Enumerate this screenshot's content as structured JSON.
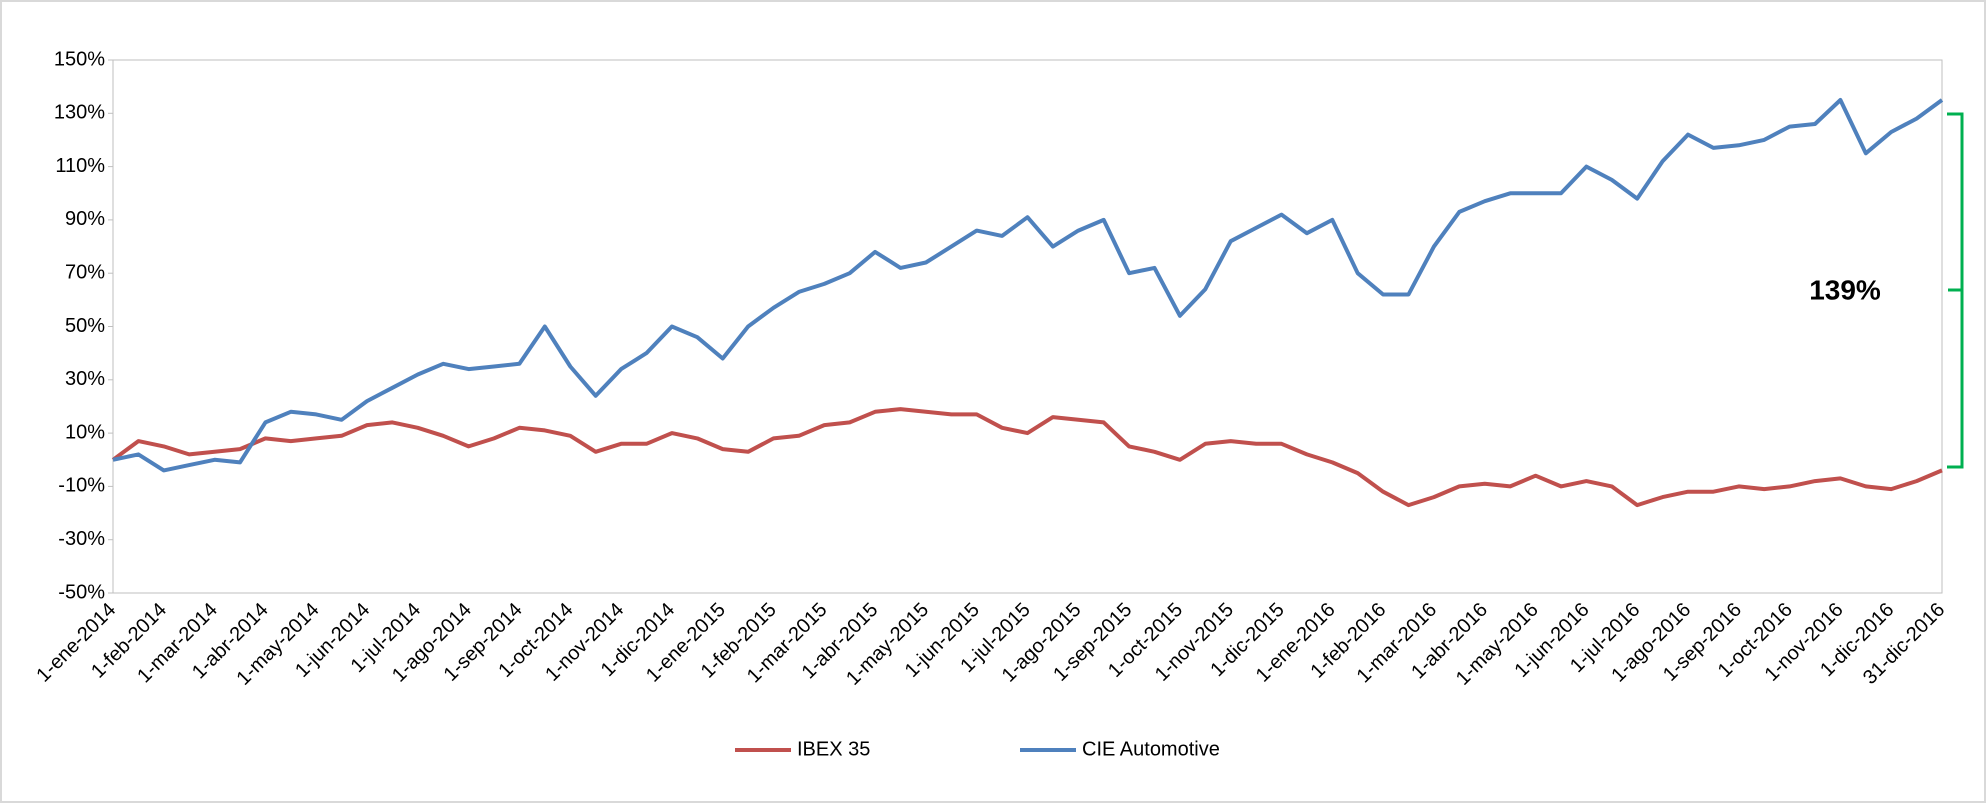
{
  "chart_data": {
    "type": "line",
    "categories": [
      "1-ene-2014",
      null,
      "1-feb-2014",
      null,
      "1-mar-2014",
      null,
      "1-abr-2014",
      null,
      "1-may-2014",
      null,
      "1-jun-2014",
      null,
      "1-jul-2014",
      null,
      "1-ago-2014",
      null,
      "1-sep-2014",
      null,
      "1-oct-2014",
      null,
      "1-nov-2014",
      null,
      "1-dic-2014",
      null,
      "1-ene-2015",
      null,
      "1-feb-2015",
      null,
      "1-mar-2015",
      null,
      "1-abr-2015",
      null,
      "1-may-2015",
      null,
      "1-jun-2015",
      null,
      "1-jul-2015",
      null,
      "1-ago-2015",
      null,
      "1-sep-2015",
      null,
      "1-oct-2015",
      null,
      "1-nov-2015",
      null,
      "1-dic-2015",
      null,
      "1-ene-2016",
      null,
      "1-feb-2016",
      null,
      "1-mar-2016",
      null,
      "1-abr-2016",
      null,
      "1-may-2016",
      null,
      "1-jun-2016",
      null,
      "1-jul-2016",
      null,
      "1-ago-2016",
      null,
      "1-sep-2016",
      null,
      "1-oct-2016",
      null,
      "1-nov-2016",
      null,
      "1-dic-2016",
      null,
      "31-dic-2016"
    ],
    "series": [
      {
        "name": "IBEX 35",
        "color": "#c0504d",
        "values": [
          0,
          7,
          5,
          2,
          3,
          4,
          8,
          7,
          8,
          9,
          13,
          14,
          12,
          9,
          5,
          8,
          12,
          11,
          9,
          3,
          6,
          6,
          10,
          8,
          4,
          3,
          8,
          9,
          13,
          14,
          18,
          19,
          18,
          17,
          17,
          12,
          10,
          16,
          15,
          14,
          5,
          3,
          0,
          6,
          7,
          6,
          6,
          2,
          -1,
          -5,
          -12,
          -17,
          -14,
          -10,
          -9,
          -10,
          -6,
          -10,
          -8,
          -10,
          -17,
          -14,
          -12,
          -12,
          -10,
          -11,
          -10,
          -8,
          -7,
          -10,
          -11,
          -8,
          -4
        ]
      },
      {
        "name": "CIE Automotive",
        "color": "#4f81bd",
        "values": [
          0,
          2,
          -4,
          -2,
          0,
          -1,
          14,
          18,
          17,
          15,
          22,
          27,
          32,
          36,
          34,
          35,
          36,
          50,
          35,
          24,
          34,
          40,
          50,
          46,
          38,
          50,
          57,
          63,
          66,
          70,
          78,
          72,
          74,
          80,
          86,
          84,
          91,
          80,
          86,
          90,
          70,
          72,
          54,
          64,
          82,
          87,
          92,
          85,
          90,
          70,
          62,
          62,
          80,
          93,
          97,
          100,
          100,
          100,
          110,
          105,
          98,
          112,
          122,
          117,
          118,
          120,
          125,
          126,
          135,
          115,
          123,
          128,
          135
        ]
      }
    ],
    "ylim": [
      -50,
      150
    ],
    "yticks": [
      {
        "value": -50,
        "label": "-50%"
      },
      {
        "value": -30,
        "label": "-30%"
      },
      {
        "value": -10,
        "label": "-10%"
      },
      {
        "value": 10,
        "label": "10%"
      },
      {
        "value": 30,
        "label": "30%"
      },
      {
        "value": 50,
        "label": "50%"
      },
      {
        "value": 70,
        "label": "70%"
      },
      {
        "value": 90,
        "label": "90%"
      },
      {
        "value": 110,
        "label": "110%"
      },
      {
        "value": 130,
        "label": "130%"
      },
      {
        "value": 150,
        "label": "150%"
      }
    ],
    "grid": false,
    "legend": "bottom",
    "annotation": "139%",
    "annotation_color": "#00b050"
  }
}
